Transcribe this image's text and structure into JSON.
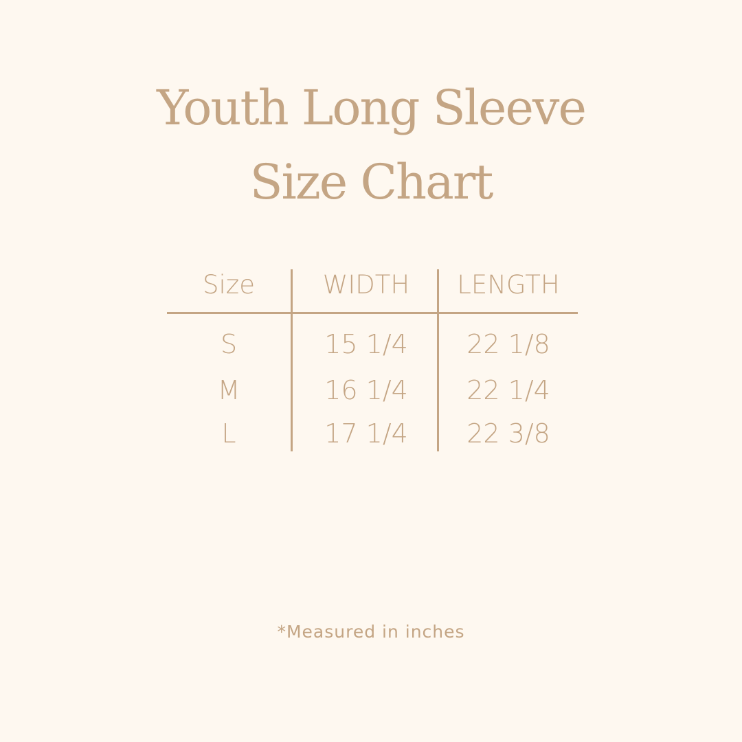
{
  "title": {
    "line1": "Youth Long Sleeve",
    "line2": "Size Chart"
  },
  "table": {
    "headers": [
      "Size",
      "WIDTH",
      "LENGTH"
    ],
    "rows": [
      [
        "S",
        "15 1/4",
        "22 1/8"
      ],
      [
        "M",
        "16 1/4",
        "22 1/4"
      ],
      [
        "L",
        "17 1/4",
        "22 3/8"
      ]
    ]
  },
  "note": "*Measured in inches",
  "colors": {
    "background": "#fef8f0",
    "text": "#c4a584"
  }
}
